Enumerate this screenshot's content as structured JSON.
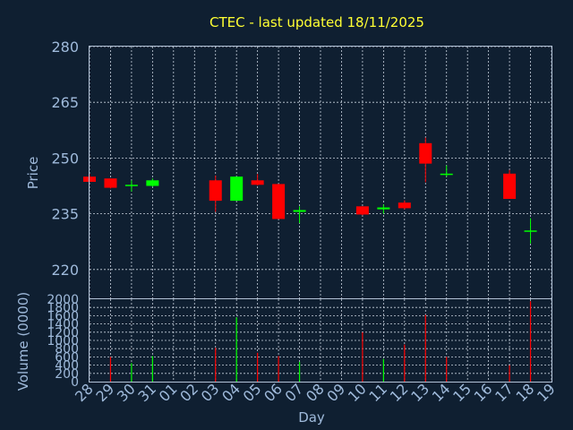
{
  "chart_data": [
    {
      "type": "candlestick",
      "title": "CTEC - last updated 18/11/2025",
      "ylabel": "Price",
      "ylim": [
        212,
        280
      ],
      "yticks": [
        220,
        235,
        250,
        265,
        280
      ],
      "grid": true,
      "colors": {
        "up": "#00ff00",
        "down": "#ff0000"
      },
      "categories": [
        "28",
        "29",
        "30",
        "31",
        "01",
        "02",
        "03",
        "04",
        "05",
        "06",
        "07",
        "08",
        "09",
        "10",
        "11",
        "12",
        "13",
        "14",
        "15",
        "16",
        "17",
        "18",
        "19"
      ],
      "candles": [
        {
          "x": "28",
          "open": 245.0,
          "high": 245.7,
          "low": 243.6,
          "close": 243.6
        },
        {
          "x": "29",
          "open": 244.5,
          "high": 244.5,
          "low": 241.8,
          "close": 242.0
        },
        {
          "x": "30",
          "open": 242.5,
          "high": 244.0,
          "low": 241.0,
          "close": 242.8
        },
        {
          "x": "31",
          "open": 242.5,
          "high": 244.5,
          "low": 242.3,
          "close": 244.0
        },
        {
          "x": "03",
          "open": 244.0,
          "high": 245.3,
          "low": 235.5,
          "close": 238.5
        },
        {
          "x": "04",
          "open": 238.5,
          "high": 245.0,
          "low": 238.5,
          "close": 245.0
        },
        {
          "x": "05",
          "open": 244.0,
          "high": 245.7,
          "low": 242.6,
          "close": 242.8
        },
        {
          "x": "06",
          "open": 243.0,
          "high": 243.0,
          "low": 233.6,
          "close": 233.6
        },
        {
          "x": "07",
          "open": 235.5,
          "high": 237.0,
          "low": 232.5,
          "close": 236.0
        },
        {
          "x": "10",
          "open": 237.0,
          "high": 237.0,
          "low": 234.6,
          "close": 234.8
        },
        {
          "x": "11",
          "open": 236.2,
          "high": 237.5,
          "low": 235.0,
          "close": 236.7
        },
        {
          "x": "12",
          "open": 238.0,
          "high": 238.6,
          "low": 236.2,
          "close": 236.5
        },
        {
          "x": "13",
          "open": 254.0,
          "high": 255.5,
          "low": 243.5,
          "close": 248.5
        },
        {
          "x": "14",
          "open": 245.8,
          "high": 248.0,
          "low": 245.0,
          "close": 245.8
        },
        {
          "x": "17",
          "open": 245.8,
          "high": 246.8,
          "low": 239.0,
          "close": 239.0
        },
        {
          "x": "18",
          "open": 230.5,
          "high": 233.8,
          "low": 227.0,
          "close": 230.5
        }
      ]
    },
    {
      "type": "bar",
      "ylabel": "Volume (0000)",
      "xlabel": "Day",
      "ylim": [
        0,
        2000
      ],
      "yticks": [
        0,
        200,
        400,
        600,
        800,
        1000,
        1200,
        1400,
        1600,
        1800,
        2000
      ],
      "grid": true,
      "categories": [
        "28",
        "29",
        "30",
        "31",
        "01",
        "02",
        "03",
        "04",
        "05",
        "06",
        "07",
        "08",
        "09",
        "10",
        "11",
        "12",
        "13",
        "14",
        "15",
        "16",
        "17",
        "18",
        "19"
      ],
      "bars": [
        {
          "x": "29",
          "value": 600,
          "color": "#ff0000"
        },
        {
          "x": "30",
          "value": 450,
          "color": "#00ff00"
        },
        {
          "x": "31",
          "value": 620,
          "color": "#00ff00"
        },
        {
          "x": "03",
          "value": 820,
          "color": "#ff0000"
        },
        {
          "x": "04",
          "value": 1560,
          "color": "#00ff00"
        },
        {
          "x": "05",
          "value": 700,
          "color": "#ff0000"
        },
        {
          "x": "06",
          "value": 620,
          "color": "#ff0000"
        },
        {
          "x": "07",
          "value": 480,
          "color": "#00ff00"
        },
        {
          "x": "10",
          "value": 1200,
          "color": "#ff0000"
        },
        {
          "x": "11",
          "value": 550,
          "color": "#00ff00"
        },
        {
          "x": "12",
          "value": 900,
          "color": "#ff0000"
        },
        {
          "x": "13",
          "value": 1620,
          "color": "#ff0000"
        },
        {
          "x": "14",
          "value": 600,
          "color": "#ff0000"
        },
        {
          "x": "17",
          "value": 400,
          "color": "#ff0000"
        },
        {
          "x": "18",
          "value": 1950,
          "color": "#ff0000"
        }
      ]
    }
  ]
}
